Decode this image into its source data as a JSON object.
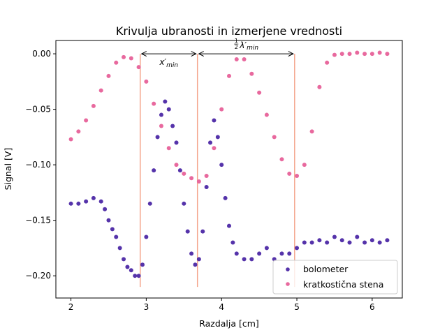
{
  "chart_data": {
    "type": "scatter",
    "title": "Krivulja ubranosti in izmerjene vrednosti",
    "xlabel": "Razdalja [cm]",
    "ylabel": "Signal [V]",
    "xlim": [
      1.8,
      6.4
    ],
    "ylim": [
      -0.22,
      0.012
    ],
    "xticks": [
      2,
      3,
      4,
      5,
      6
    ],
    "xtick_labels": [
      "2",
      "3",
      "4",
      "5",
      "6"
    ],
    "yticks": [
      0.0,
      -0.05,
      -0.1,
      -0.15,
      -0.2
    ],
    "ytick_labels": [
      "0.00",
      "−0.05",
      "−0.10",
      "−0.15",
      "−0.20"
    ],
    "grid": false,
    "legend_position": "lower-right",
    "series": [
      {
        "name": "bolometer",
        "color": "#5533aa",
        "x": [
          2.0,
          2.1,
          2.2,
          2.3,
          2.4,
          2.45,
          2.5,
          2.55,
          2.6,
          2.65,
          2.7,
          2.75,
          2.8,
          2.85,
          2.9,
          2.95,
          3.0,
          3.05,
          3.1,
          3.15,
          3.2,
          3.25,
          3.3,
          3.35,
          3.4,
          3.45,
          3.5,
          3.55,
          3.6,
          3.65,
          3.7,
          3.75,
          3.8,
          3.85,
          3.9,
          3.95,
          4.0,
          4.05,
          4.1,
          4.15,
          4.2,
          4.3,
          4.4,
          4.5,
          4.6,
          4.7,
          4.8,
          4.9,
          5.0,
          5.1,
          5.2,
          5.3,
          5.4,
          5.5,
          5.6,
          5.7,
          5.8,
          5.9,
          6.0,
          6.1,
          6.2
        ],
        "y": [
          -0.135,
          -0.135,
          -0.133,
          -0.13,
          -0.133,
          -0.14,
          -0.15,
          -0.158,
          -0.165,
          -0.175,
          -0.185,
          -0.192,
          -0.195,
          -0.2,
          -0.2,
          -0.19,
          -0.165,
          -0.135,
          -0.105,
          -0.075,
          -0.055,
          -0.043,
          -0.05,
          -0.065,
          -0.08,
          -0.105,
          -0.135,
          -0.16,
          -0.18,
          -0.19,
          -0.185,
          -0.16,
          -0.12,
          -0.08,
          -0.06,
          -0.075,
          -0.1,
          -0.13,
          -0.155,
          -0.17,
          -0.18,
          -0.185,
          -0.185,
          -0.18,
          -0.175,
          -0.185,
          -0.18,
          -0.18,
          -0.175,
          -0.17,
          -0.17,
          -0.168,
          -0.17,
          -0.165,
          -0.168,
          -0.17,
          -0.165,
          -0.17,
          -0.168,
          -0.17,
          -0.168
        ]
      },
      {
        "name": "kratkostična stena",
        "color": "#e8699e",
        "x": [
          2.0,
          2.1,
          2.2,
          2.3,
          2.4,
          2.5,
          2.6,
          2.7,
          2.8,
          2.9,
          3.0,
          3.1,
          3.2,
          3.3,
          3.4,
          3.5,
          3.6,
          3.7,
          3.8,
          3.9,
          4.0,
          4.1,
          4.2,
          4.3,
          4.4,
          4.5,
          4.6,
          4.7,
          4.8,
          4.9,
          5.0,
          5.1,
          5.2,
          5.3,
          5.4,
          5.5,
          5.6,
          5.7,
          5.8,
          5.9,
          6.0,
          6.1,
          6.2
        ],
        "y": [
          -0.077,
          -0.07,
          -0.06,
          -0.047,
          -0.033,
          -0.02,
          -0.008,
          -0.003,
          -0.004,
          -0.012,
          -0.025,
          -0.045,
          -0.065,
          -0.085,
          -0.1,
          -0.108,
          -0.112,
          -0.115,
          -0.11,
          -0.085,
          -0.05,
          -0.02,
          -0.005,
          -0.005,
          -0.018,
          -0.035,
          -0.055,
          -0.075,
          -0.095,
          -0.108,
          -0.11,
          -0.1,
          -0.07,
          -0.03,
          -0.008,
          -0.001,
          0.0,
          0.0,
          0.001,
          0.0,
          0.0,
          0.001,
          0.0
        ]
      }
    ],
    "vertical_lines": [
      {
        "x": 2.92,
        "y_top": 0.0,
        "y_bottom": -0.21,
        "color": "#f4a58c"
      },
      {
        "x": 3.68,
        "y_top": 0.0,
        "y_bottom": -0.21,
        "color": "#f4a58c"
      },
      {
        "x": 4.97,
        "y_top": 0.0,
        "y_bottom": -0.21,
        "color": "#f4a58c"
      }
    ],
    "annotations": [
      {
        "from_x": 2.92,
        "to_x": 3.68,
        "y": 0.0,
        "label": "x′",
        "label_sub": "min"
      },
      {
        "from_x": 3.68,
        "to_x": 4.97,
        "y": 0.0,
        "label_prefix_num": "1",
        "label_prefix_den": "2",
        "label": "λ′",
        "label_sub": "min"
      }
    ]
  }
}
